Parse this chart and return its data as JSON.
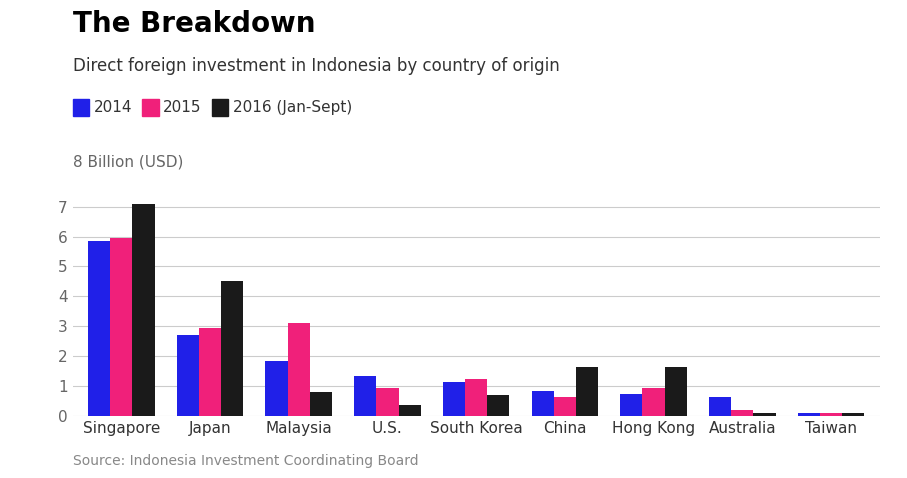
{
  "title": "The Breakdown",
  "subtitle": "Direct foreign investment in Indonesia by country of origin",
  "ylabel": "8 Billion (USD)",
  "source": "Source: Indonesia Investment Coordinating Board",
  "categories": [
    "Singapore",
    "Japan",
    "Malaysia",
    "U.S.",
    "South Korea",
    "China",
    "Hong Kong",
    "Australia",
    "Taiwan"
  ],
  "series": {
    "2014": [
      5.85,
      2.72,
      1.82,
      1.35,
      1.12,
      0.82,
      0.72,
      0.63,
      0.1
    ],
    "2015": [
      5.94,
      2.93,
      3.11,
      0.93,
      1.25,
      0.62,
      0.93,
      0.18,
      0.1
    ],
    "2016 (Jan-Sept)": [
      7.1,
      4.52,
      0.8,
      0.37,
      0.7,
      1.62,
      1.62,
      0.08,
      0.1
    ]
  },
  "colors": {
    "2014": "#2020e8",
    "2015": "#f0207a",
    "2016 (Jan-Sept)": "#1a1a1a"
  },
  "ylim": [
    0,
    8
  ],
  "yticks": [
    0,
    1,
    2,
    3,
    4,
    5,
    6,
    7
  ],
  "background_color": "#ffffff",
  "bar_width": 0.25,
  "title_fontsize": 20,
  "subtitle_fontsize": 12,
  "legend_fontsize": 11,
  "tick_fontsize": 11,
  "ylabel_fontsize": 11,
  "source_fontsize": 10
}
